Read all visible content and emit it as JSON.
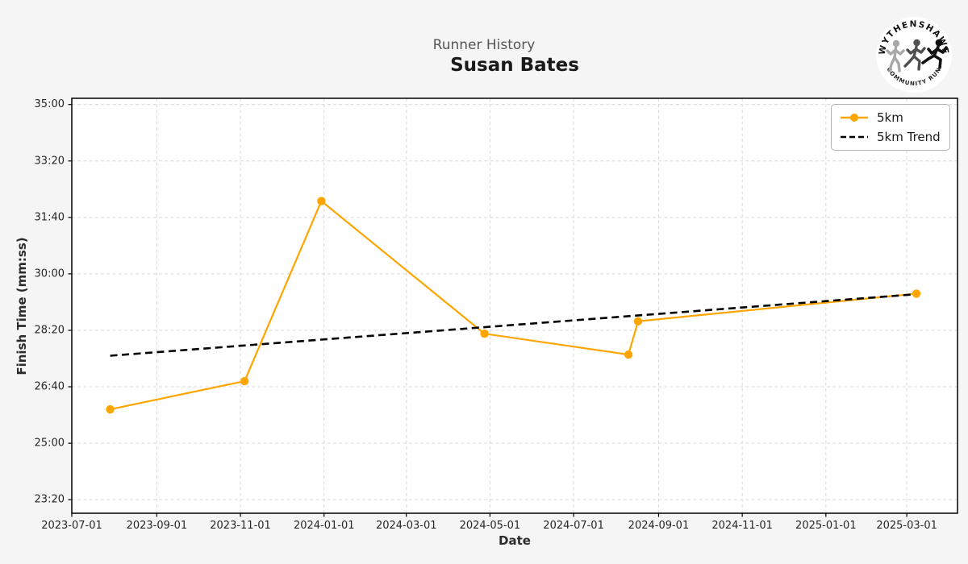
{
  "figure": {
    "background": "#f5f5f5",
    "plot_background": "#ffffff"
  },
  "logo": {
    "text_top": "WYTHENSHAWE",
    "text_bottom": "COMMUNITY RUN",
    "runner_colors": [
      "#a8a8a8",
      "#4f4f4f",
      "#111111"
    ]
  },
  "chart_data": {
    "type": "line",
    "suptitle": "Runner History",
    "title": "Susan Bates",
    "xlabel": "Date",
    "ylabel": "Finish Time (mm:ss)",
    "x_ticks": [
      "2023-07-01",
      "2023-09-01",
      "2023-11-01",
      "2024-01-01",
      "2024-03-01",
      "2024-05-01",
      "2024-07-01",
      "2024-09-01",
      "2024-11-01",
      "2025-01-01",
      "2025-03-01"
    ],
    "y_ticks": [
      "23:20",
      "25:00",
      "26:40",
      "28:20",
      "30:00",
      "31:40",
      "33:20",
      "35:00"
    ],
    "xlim": [
      "2023-07-01",
      "2025-04-07"
    ],
    "ylim": [
      "22:56",
      "35:11"
    ],
    "grid": {
      "show": true,
      "style": "dashed",
      "color": "#d9d9d9"
    },
    "series": [
      {
        "name": "5km",
        "color": "#ffa500",
        "marker": "circle",
        "points": [
          {
            "date": "2023-07-29",
            "time": "26:00"
          },
          {
            "date": "2023-11-04",
            "time": "26:50"
          },
          {
            "date": "2023-12-30",
            "time": "32:09"
          },
          {
            "date": "2024-04-27",
            "time": "28:14"
          },
          {
            "date": "2024-08-10",
            "time": "27:37"
          },
          {
            "date": "2024-08-17",
            "time": "28:36"
          },
          {
            "date": "2025-03-08",
            "time": "29:25"
          }
        ]
      }
    ],
    "trend": {
      "name": "5km Trend",
      "color": "#000000",
      "style": "dashed",
      "points": [
        {
          "date": "2023-07-29",
          "time": "27:35"
        },
        {
          "date": "2025-03-08",
          "time": "29:24"
        }
      ]
    },
    "legend": {
      "position": "upper right",
      "entries": [
        {
          "label": "5km",
          "sample": "line-marker"
        },
        {
          "label": "5km Trend",
          "sample": "dashed-line"
        }
      ]
    }
  }
}
